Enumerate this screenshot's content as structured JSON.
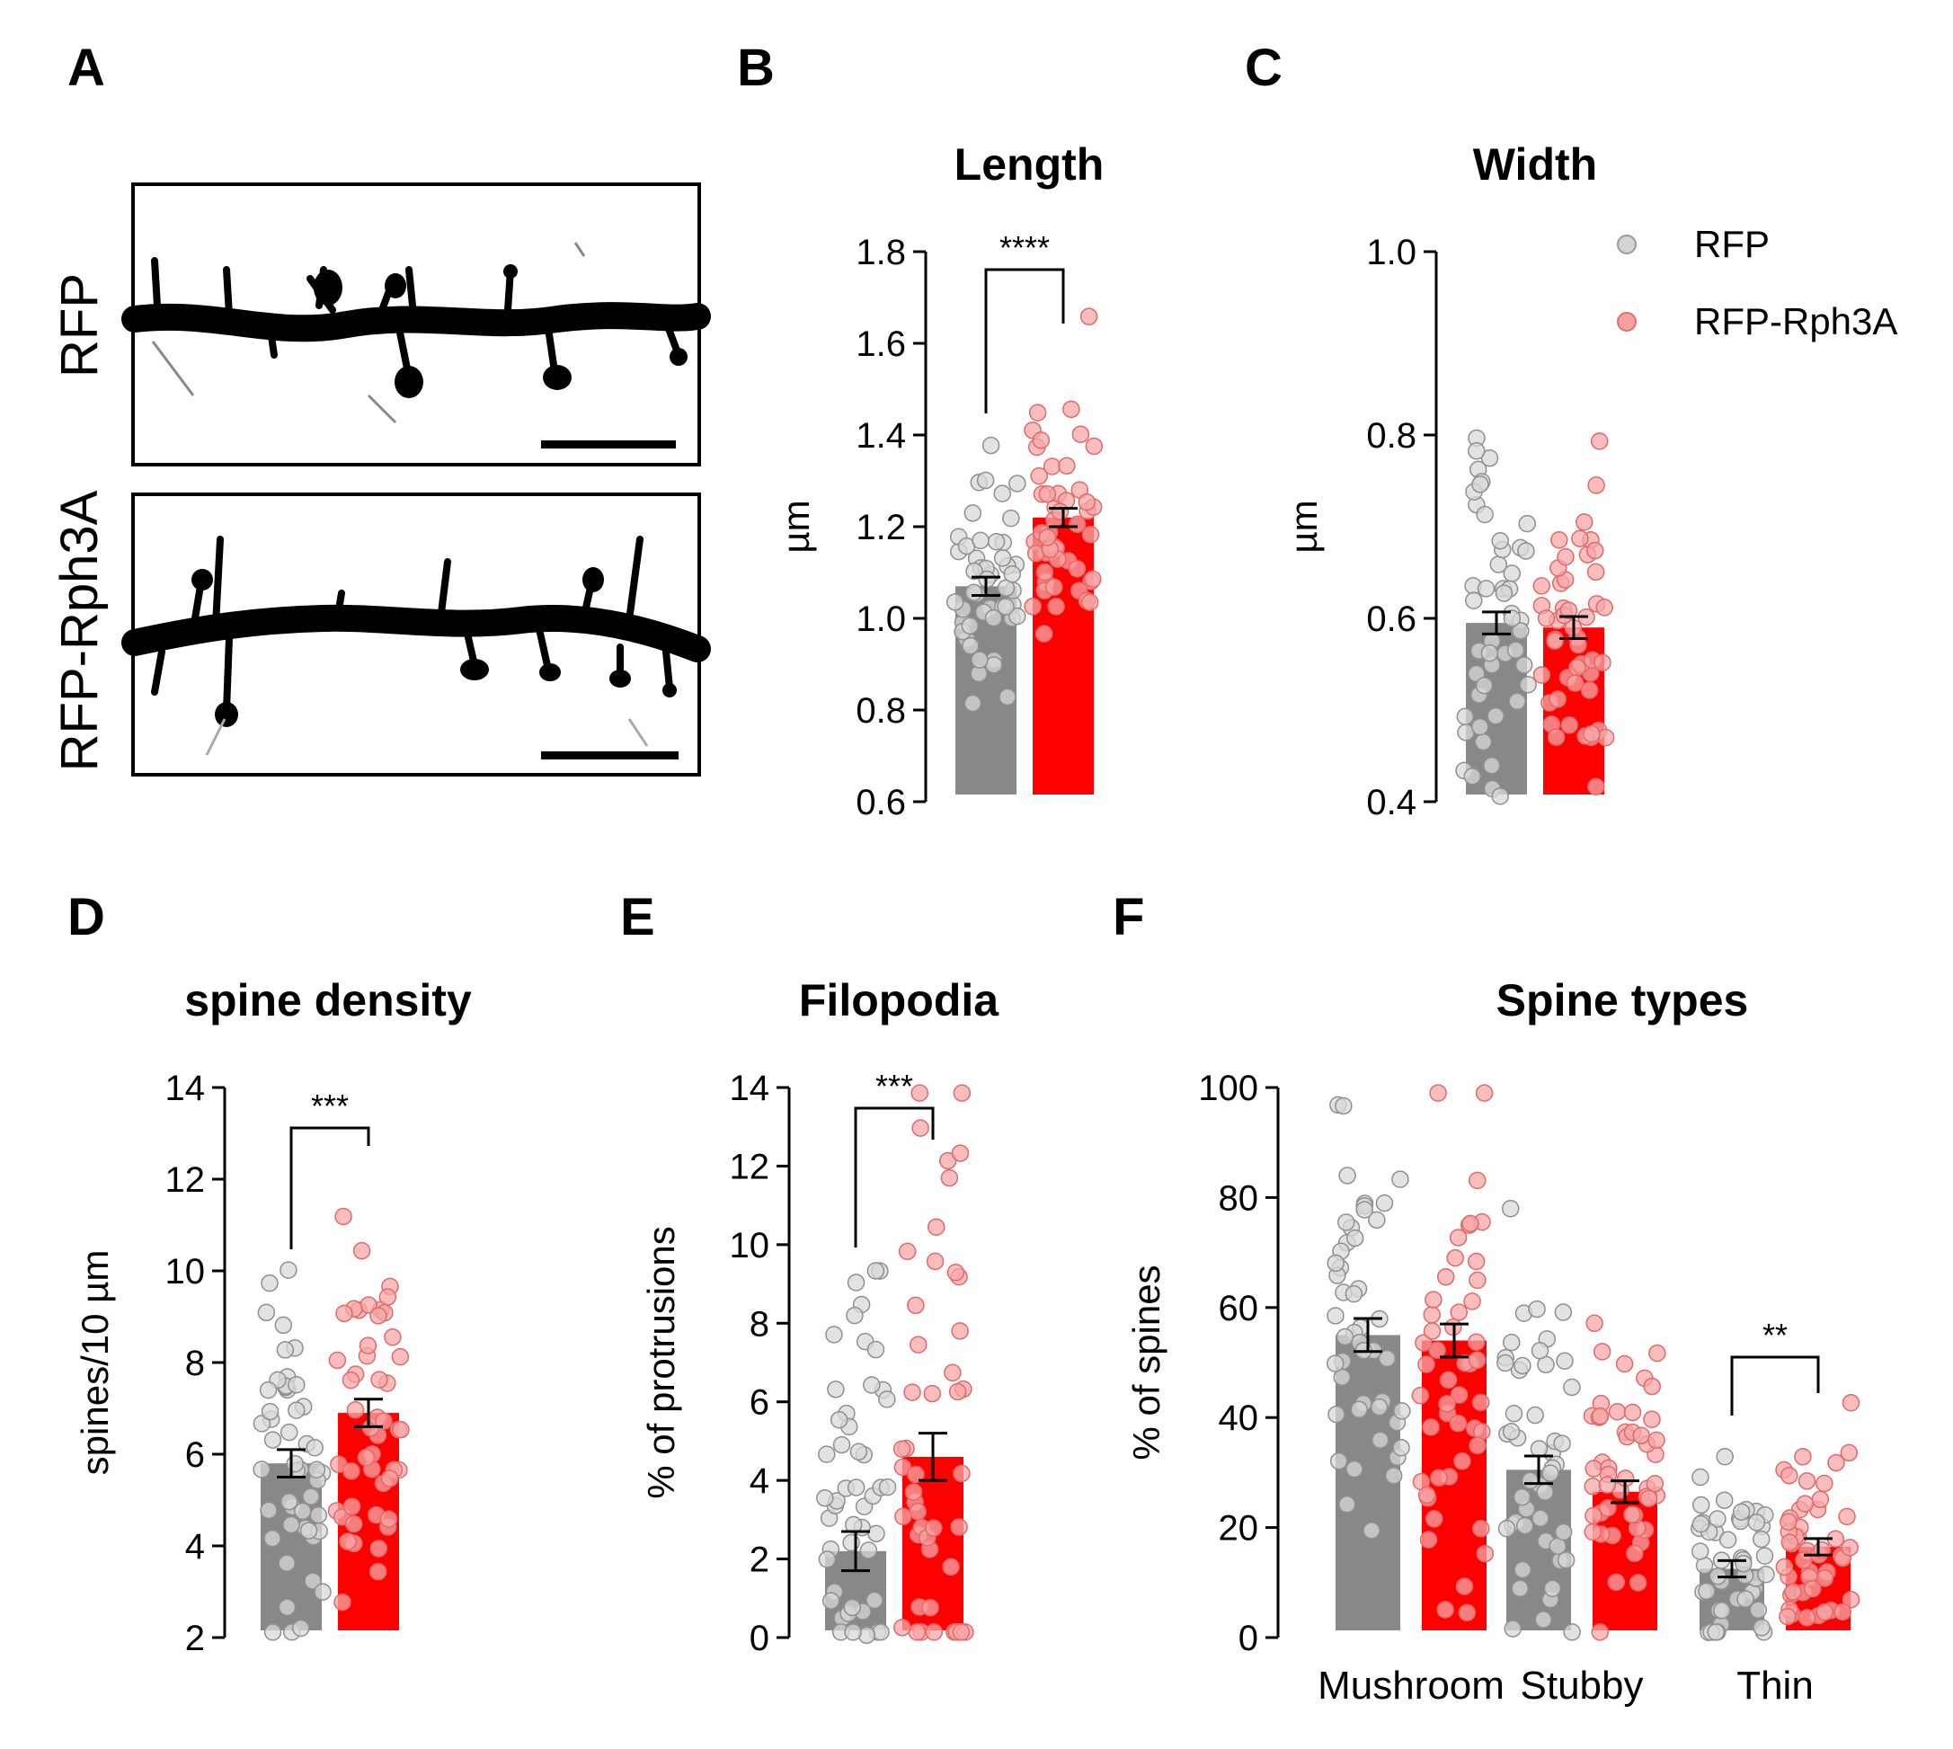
{
  "panels": {
    "A": {
      "letter": "A",
      "row_labels": [
        "RFP",
        "RFP-Rph3A"
      ]
    }
  },
  "legend": {
    "items": [
      {
        "label": "RFP",
        "color": "#d4d4d4"
      },
      {
        "label": "RFP-Rph3A",
        "color": "#f7a0a0"
      }
    ]
  },
  "colors": {
    "RFP_bar": "#888888",
    "Rph3A_bar": "#ff0000",
    "RFP_dot": "#d8d8d8",
    "Rph3A_dot": "#f7a7a7"
  },
  "chart_data": [
    {
      "id": "B",
      "letter": "B",
      "type": "bar",
      "title": "Length",
      "ylabel": "µm",
      "ylim": [
        0.6,
        1.8
      ],
      "yticks": [
        0.6,
        0.8,
        1.0,
        1.2,
        1.4,
        1.6,
        1.8
      ],
      "tick_decimals": 1,
      "categories": [
        ""
      ],
      "series": [
        {
          "name": "RFP",
          "values": [
            1.07
          ],
          "sem": [
            0.02
          ]
        },
        {
          "name": "RFP-Rph3A",
          "values": [
            1.22
          ],
          "sem": [
            0.02
          ]
        }
      ],
      "significance": [
        {
          "label": "****",
          "category": 0
        }
      ]
    },
    {
      "id": "C",
      "letter": "C",
      "type": "bar",
      "title": "Width",
      "ylabel": "µm",
      "ylim": [
        0.4,
        1.0
      ],
      "yticks": [
        0.4,
        0.6,
        0.8,
        1.0
      ],
      "tick_decimals": 1,
      "categories": [
        ""
      ],
      "series": [
        {
          "name": "RFP",
          "values": [
            0.595
          ],
          "sem": [
            0.012
          ]
        },
        {
          "name": "RFP-Rph3A",
          "values": [
            0.59
          ],
          "sem": [
            0.012
          ]
        }
      ],
      "significance": []
    },
    {
      "id": "D",
      "letter": "D",
      "type": "bar",
      "title": "spine density",
      "ylabel": "spines/10 µm",
      "ylim": [
        2,
        14
      ],
      "yticks": [
        2,
        4,
        6,
        8,
        10,
        12,
        14
      ],
      "tick_decimals": 0,
      "categories": [
        ""
      ],
      "series": [
        {
          "name": "RFP",
          "values": [
            5.8
          ],
          "sem": [
            0.3
          ]
        },
        {
          "name": "RFP-Rph3A",
          "values": [
            6.9
          ],
          "sem": [
            0.3
          ]
        }
      ],
      "significance": [
        {
          "label": "***",
          "category": 0
        }
      ]
    },
    {
      "id": "E",
      "letter": "E",
      "type": "bar",
      "title": "Filopodia",
      "ylabel": "% of protrusions",
      "ylim": [
        0,
        14
      ],
      "yticks": [
        0,
        2,
        4,
        6,
        8,
        10,
        12,
        14
      ],
      "tick_decimals": 0,
      "categories": [
        ""
      ],
      "series": [
        {
          "name": "RFP",
          "values": [
            2.2
          ],
          "sem": [
            0.5
          ]
        },
        {
          "name": "RFP-Rph3A",
          "values": [
            4.6
          ],
          "sem": [
            0.6
          ]
        }
      ],
      "significance": [
        {
          "label": "***",
          "category": 0
        }
      ]
    },
    {
      "id": "F",
      "letter": "F",
      "type": "bar",
      "title": "Spine types",
      "ylabel": "% of spines",
      "ylim": [
        0,
        100
      ],
      "yticks": [
        0,
        20,
        40,
        60,
        80,
        100
      ],
      "tick_decimals": 0,
      "categories": [
        "Mushroom",
        "Stubby",
        "Thin"
      ],
      "series": [
        {
          "name": "RFP",
          "values": [
            55,
            30.5,
            12.5
          ],
          "sem": [
            3,
            2.5,
            1.5
          ]
        },
        {
          "name": "RFP-Rph3A",
          "values": [
            54,
            26.5,
            16.5
          ],
          "sem": [
            3,
            2,
            1.5
          ]
        }
      ],
      "significance": [
        {
          "label": "**",
          "category": 2
        }
      ]
    }
  ]
}
